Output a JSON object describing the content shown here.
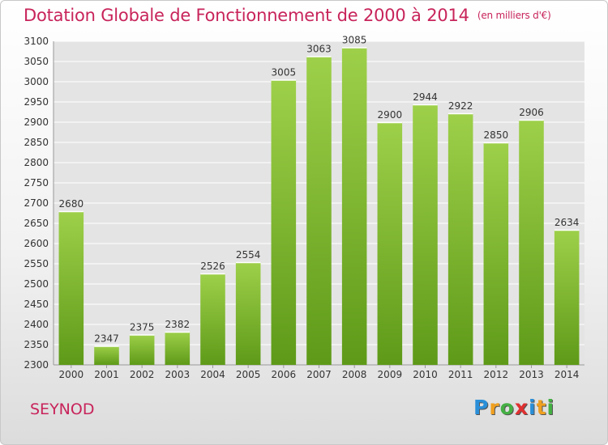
{
  "title": "Dotation Globale de Fonctionnement de 2000 à 2014",
  "unit": "(en milliers d'€)",
  "place": "SEYNOD",
  "logo": {
    "letters": [
      "P",
      "r",
      "o",
      "x",
      "i",
      "t",
      "i"
    ],
    "colors": [
      "#2a8fd8",
      "#f0a020",
      "#44b044",
      "#e03030",
      "#2a8fd8",
      "#f0a020",
      "#44b044"
    ]
  },
  "colors": {
    "bar_top": "#9ed04a",
    "bar_bottom": "#5e9a18",
    "text_accent": "#c8245a"
  },
  "chart_data": {
    "type": "bar",
    "categories": [
      "2000",
      "2001",
      "2002",
      "2003",
      "2004",
      "2005",
      "2006",
      "2007",
      "2008",
      "2009",
      "2010",
      "2011",
      "2012",
      "2013",
      "2014"
    ],
    "values": [
      2680,
      2347,
      2375,
      2382,
      2526,
      2554,
      3005,
      3063,
      3085,
      2900,
      2944,
      2922,
      2850,
      2906,
      2634
    ],
    "ylim": [
      2300,
      3100
    ],
    "yticks": [
      2300,
      2350,
      2400,
      2450,
      2500,
      2550,
      2600,
      2650,
      2700,
      2750,
      2800,
      2850,
      2900,
      2950,
      3000,
      3050,
      3100
    ],
    "grid": true
  }
}
